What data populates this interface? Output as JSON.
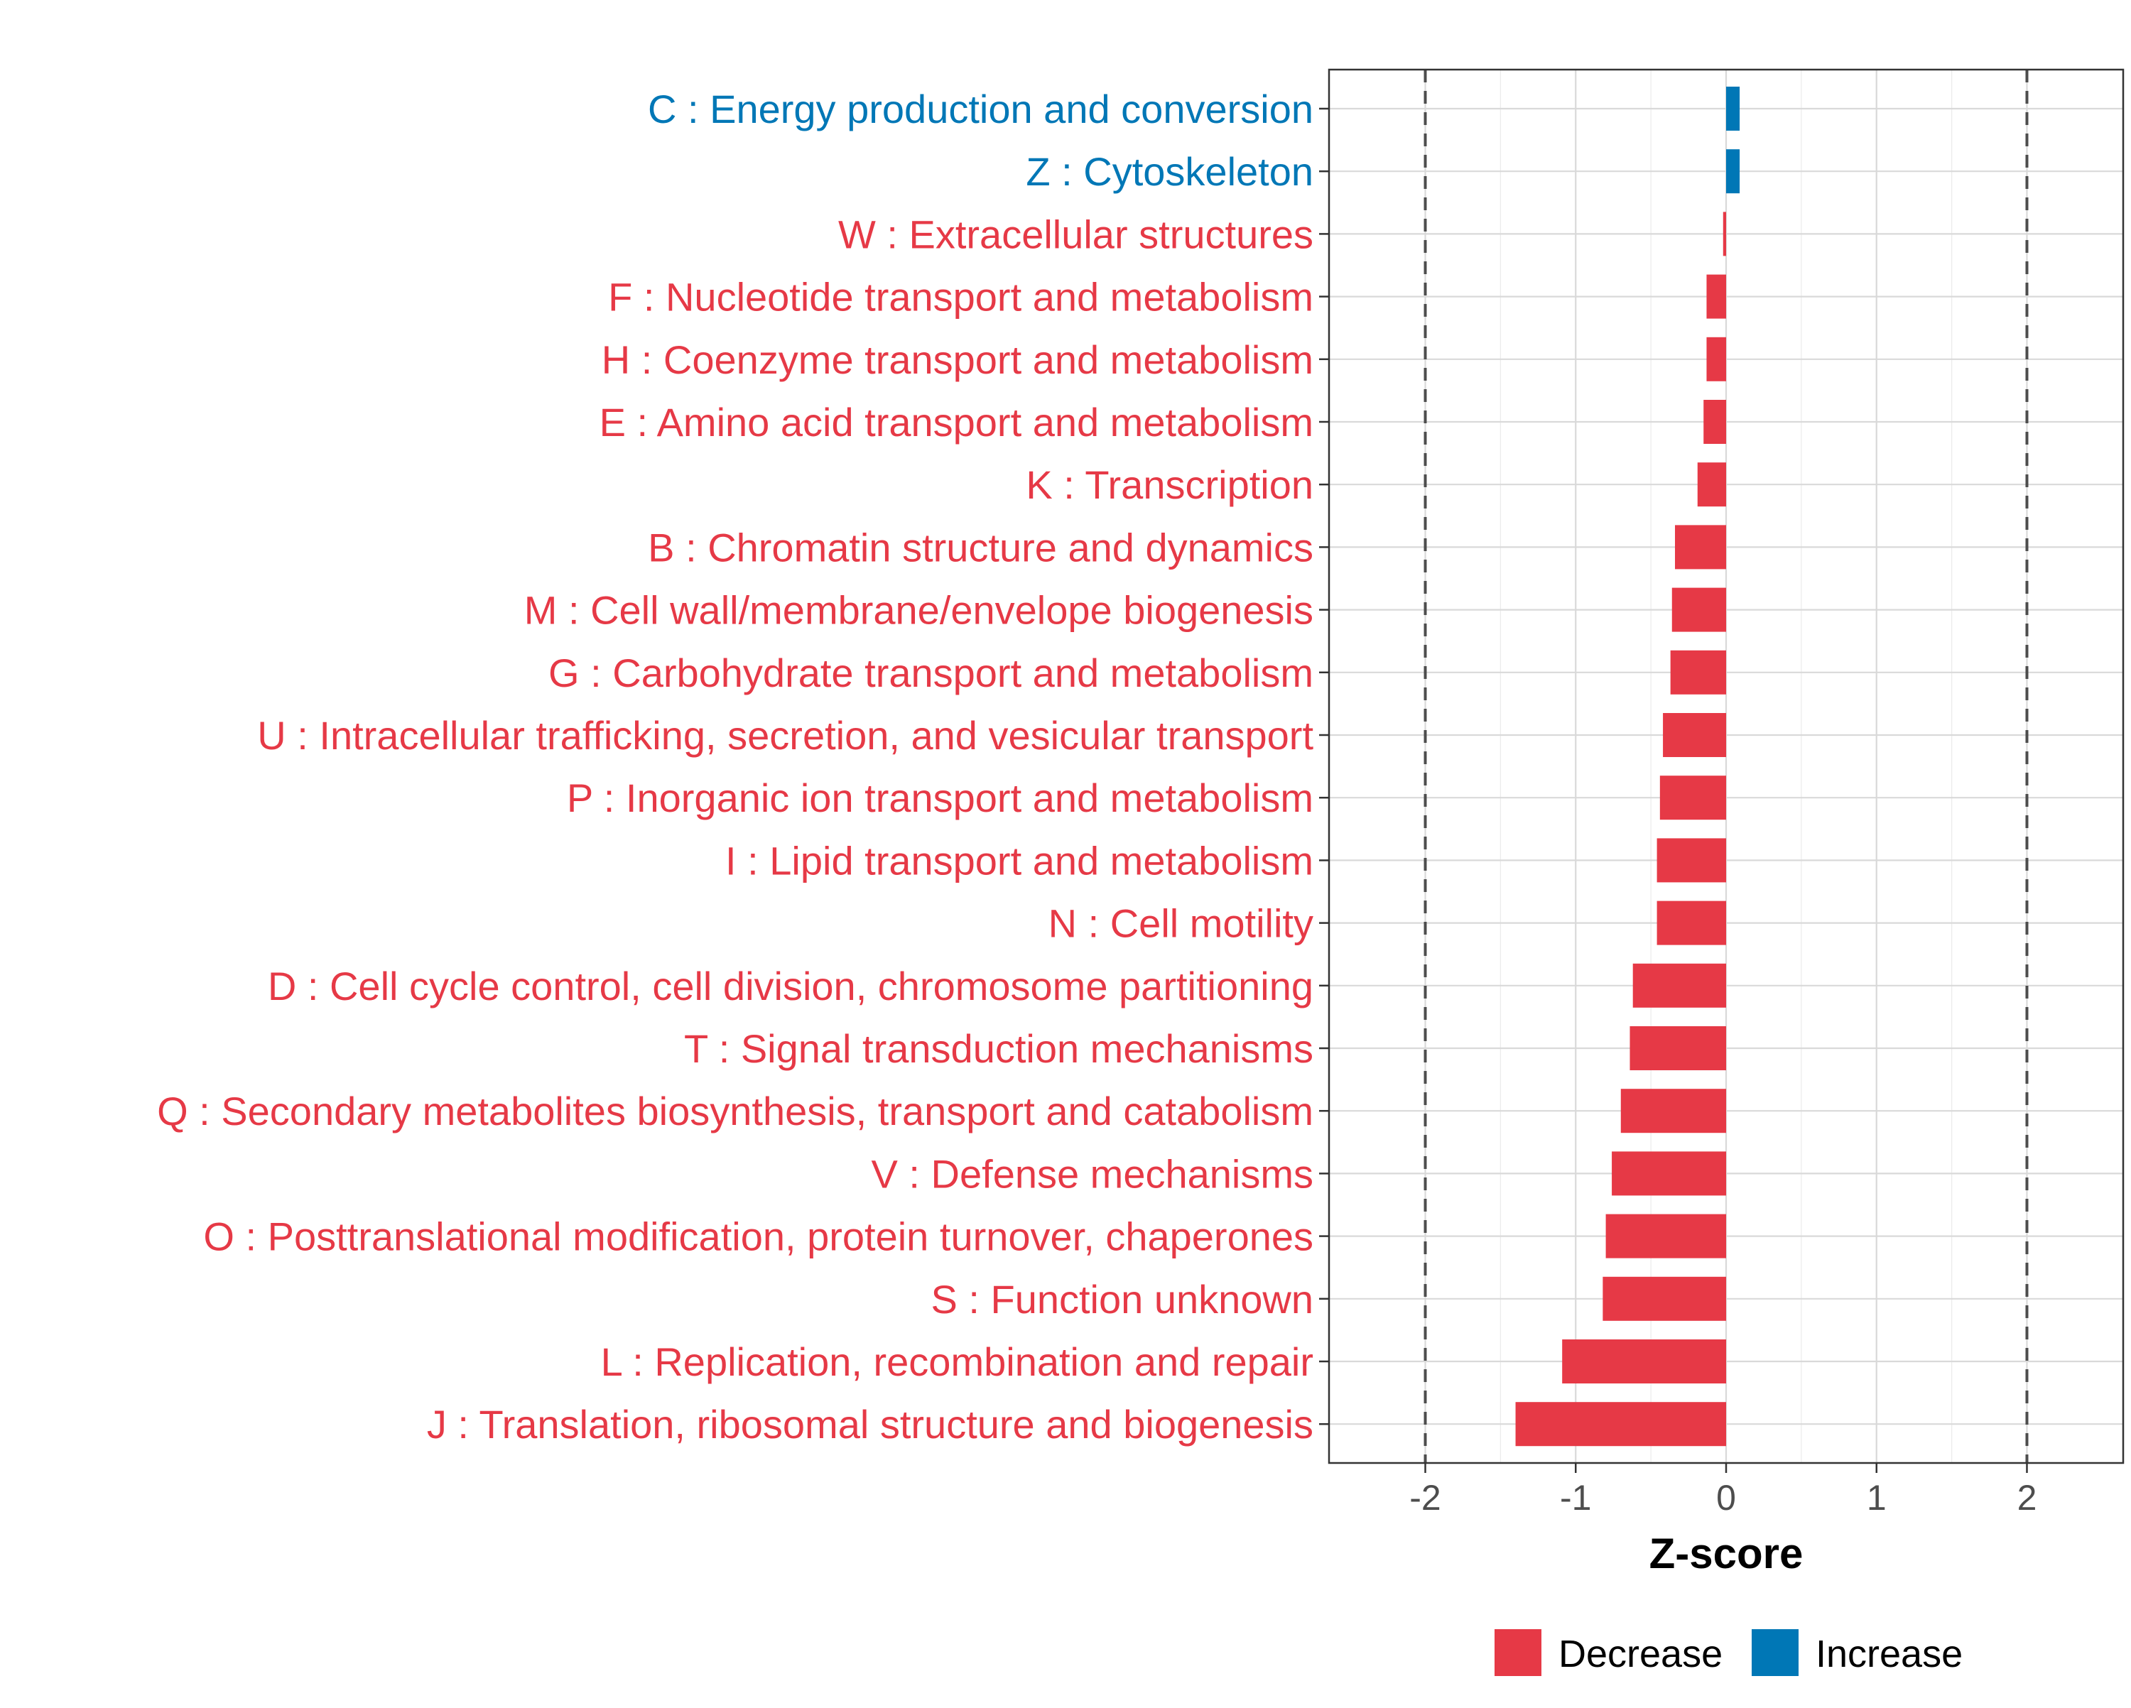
{
  "chart_data": {
    "type": "bar",
    "orientation": "horizontal",
    "title": "",
    "xlabel": "Z-score",
    "ylabel": "",
    "xlim": [
      -2.64,
      2.64
    ],
    "xticks": [
      -2,
      -1,
      0,
      1,
      2
    ],
    "xtick_labels": [
      "-2",
      "-1",
      "0",
      "1",
      "2"
    ],
    "reference_lines": [
      -2,
      2
    ],
    "grid": true,
    "legend": {
      "position": "bottom",
      "entries": [
        {
          "label": "Decrease",
          "color": "#E63946"
        },
        {
          "label": "Increase",
          "color": "#0077B6"
        }
      ]
    },
    "colors": {
      "Decrease": "#E63946",
      "Increase": "#0077B6"
    },
    "categories": [
      "C : Energy production and conversion",
      "Z : Cytoskeleton",
      "W : Extracellular structures",
      "F : Nucleotide transport and metabolism",
      "H : Coenzyme transport and metabolism",
      "E : Amino acid transport and metabolism",
      "K : Transcription",
      "B : Chromatin structure and dynamics",
      "M : Cell wall/membrane/envelope biogenesis",
      "G : Carbohydrate transport and metabolism",
      "U : Intracellular trafficking, secretion, and vesicular transport",
      "P : Inorganic ion transport and metabolism",
      "I : Lipid transport and metabolism",
      "N : Cell motility",
      "D : Cell cycle control, cell division, chromosome partitioning",
      "T : Signal transduction mechanisms",
      "Q : Secondary metabolites biosynthesis, transport and catabolism",
      "V : Defense mechanisms",
      "O : Posttranslational modification, protein turnover, chaperones",
      "S : Function unknown",
      "L : Replication, recombination and repair",
      "J : Translation, ribosomal structure and biogenesis"
    ],
    "values": [
      0.09,
      0.09,
      -0.02,
      -0.13,
      -0.13,
      -0.15,
      -0.19,
      -0.34,
      -0.36,
      -0.37,
      -0.42,
      -0.44,
      -0.46,
      -0.46,
      -0.62,
      -0.64,
      -0.7,
      -0.76,
      -0.8,
      -0.82,
      -1.09,
      -1.4
    ],
    "groups": [
      "Increase",
      "Increase",
      "Decrease",
      "Decrease",
      "Decrease",
      "Decrease",
      "Decrease",
      "Decrease",
      "Decrease",
      "Decrease",
      "Decrease",
      "Decrease",
      "Decrease",
      "Decrease",
      "Decrease",
      "Decrease",
      "Decrease",
      "Decrease",
      "Decrease",
      "Decrease",
      "Decrease",
      "Decrease"
    ]
  }
}
